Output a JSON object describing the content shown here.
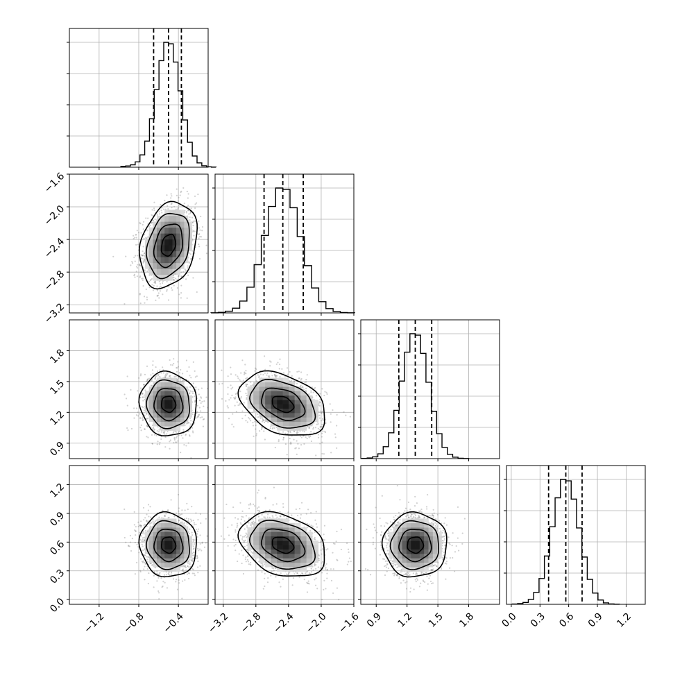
{
  "chart_data": {
    "type": "scatter",
    "subtype": "corner-plot",
    "title": "",
    "grid": true,
    "parameters": [
      {
        "range": [
          -1.5,
          -0.1
        ],
        "ticks": [
          -1.2,
          -0.8,
          -0.4
        ],
        "tick_labels": [
          "−1.2",
          "−0.8",
          "−0.4"
        ],
        "mean": -0.5,
        "sd": 0.12,
        "quantiles": [
          -0.65,
          -0.5,
          -0.37
        ]
      },
      {
        "range": [
          -3.3,
          -1.6
        ],
        "ticks": [
          -3.2,
          -2.8,
          -2.4,
          -2.0,
          -1.6
        ],
        "tick_labels": [
          "−3.2",
          "−2.8",
          "−2.4",
          "−2.0",
          "−1.6"
        ],
        "mean": -2.47,
        "sd": 0.22,
        "quantiles": [
          -2.7,
          -2.47,
          -2.22
        ]
      },
      {
        "range": [
          0.75,
          2.1
        ],
        "ticks": [
          0.9,
          1.2,
          1.5,
          1.8
        ],
        "tick_labels": [
          "0.9",
          "1.2",
          "1.5",
          "1.8"
        ],
        "mean": 1.28,
        "sd": 0.13,
        "quantiles": [
          1.12,
          1.28,
          1.44
        ]
      },
      {
        "range": [
          -0.05,
          1.4
        ],
        "ticks": [
          0.0,
          0.3,
          0.6,
          0.9,
          1.2
        ],
        "tick_labels": [
          "0.0",
          "0.3",
          "0.6",
          "0.9",
          "1.2"
        ],
        "mean": 0.57,
        "sd": 0.14,
        "quantiles": [
          0.39,
          0.57,
          0.74
        ]
      }
    ],
    "correlations": [
      [
        0,
        1,
        0.25
      ],
      [
        0,
        2,
        -0.05
      ],
      [
        0,
        3,
        -0.05
      ],
      [
        1,
        2,
        -0.35
      ],
      [
        1,
        3,
        -0.3
      ],
      [
        2,
        3,
        0.0
      ]
    ],
    "contour_levels_sigma": [
      0.5,
      1.0,
      1.5,
      2.0
    ],
    "histogram_bins": 20,
    "colors": {
      "hist": "#000000",
      "scatter": "#7a7a7a",
      "density_dark": "#000000",
      "grid": "#b0b0b0"
    }
  }
}
